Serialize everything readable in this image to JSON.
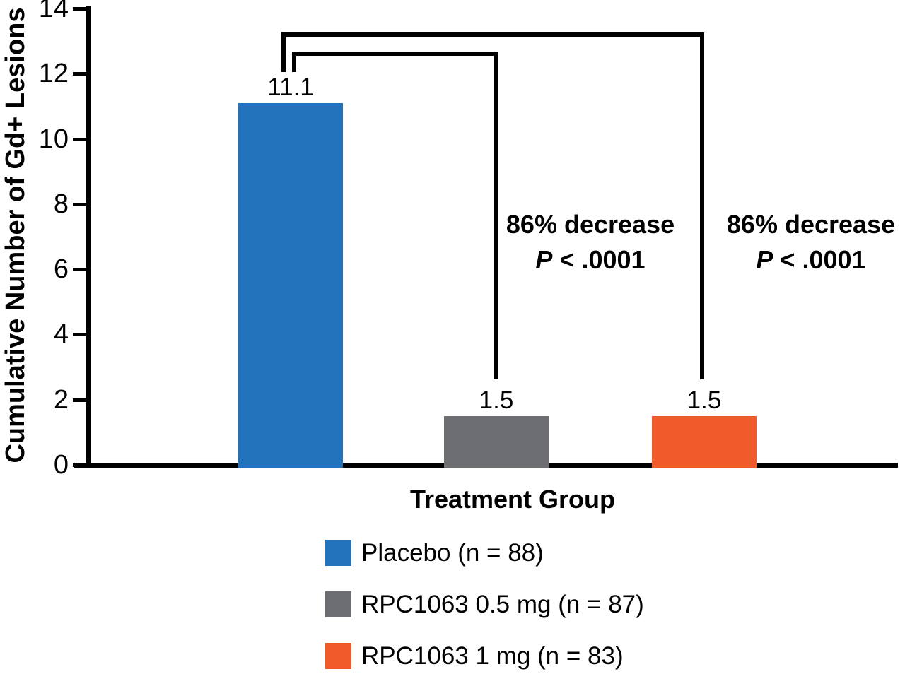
{
  "chart_data": {
    "type": "bar",
    "title": "",
    "xlabel": "Treatment Group",
    "ylabel": "Cumulative Number of Gd+ Lesions",
    "ylim": [
      0,
      14
    ],
    "yticks": [
      0,
      2,
      4,
      6,
      8,
      10,
      12,
      14
    ],
    "grid": false,
    "legend_position": "bottom",
    "categories": [
      "Placebo",
      "RPC1063 0.5 mg",
      "RPC1063 1 mg"
    ],
    "values": [
      11.1,
      1.5,
      1.5
    ],
    "bar_labels": [
      "11.1",
      "1.5",
      "1.5"
    ],
    "bar_colors": [
      "#2272BC",
      "#6C6E71",
      "#F15A2B"
    ],
    "axis_color": "#000000",
    "legend": [
      {
        "label": "Placebo (n = 88)",
        "color": "#2272BC"
      },
      {
        "label": "RPC1063 0.5 mg (n = 87)",
        "color": "#6C6E71"
      },
      {
        "label": "RPC1063 1 mg (n = 83)",
        "color": "#F15A2B"
      }
    ],
    "annotations": [
      {
        "line1": "86% decrease",
        "p_italic": "P",
        "p_rest": " < .0001"
      },
      {
        "line1": "86% decrease",
        "p_italic": "P",
        "p_rest": " < .0001"
      }
    ]
  }
}
